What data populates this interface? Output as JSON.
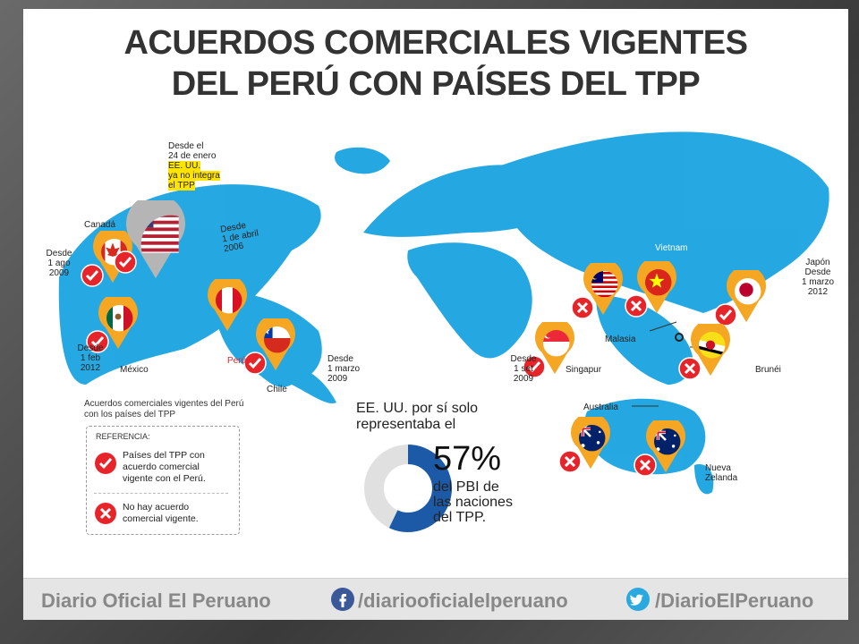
{
  "title_line1": "ACUERDOS COMERCIALES VIGENTES",
  "title_line2": "DEL PERÚ CON PAÍSES DEL TPP",
  "usa_note": {
    "line1": "Desde el",
    "line2": "24 de enero",
    "highlight1": "EE. UU.",
    "highlight2": "ya no integra",
    "highlight3": "el TPP"
  },
  "countries": {
    "canada": {
      "name": "Canadá",
      "since": [
        "Desde",
        "1 ago",
        "2009"
      ],
      "status": "check"
    },
    "usa": {
      "since": [
        "Desde",
        "1 de abril",
        "2006"
      ],
      "status": "check"
    },
    "mexico": {
      "name": "México",
      "since": [
        "Desde",
        "1 feb",
        "2012"
      ],
      "status": "check"
    },
    "peru": {
      "name": "Perú"
    },
    "chile": {
      "name": "Chile",
      "since": [
        "Desde",
        "1 marzo",
        "2009"
      ],
      "status": "check"
    },
    "malasia": {
      "name": "Malasia",
      "status": "cross"
    },
    "vietnam": {
      "name": "Vietnam",
      "status": "cross"
    },
    "japon": {
      "name": "Japón",
      "since": [
        "Desde",
        "1 marzo",
        "2012"
      ],
      "status": "check"
    },
    "singapur": {
      "name": "Singapur",
      "since": [
        "Desde",
        "1 set",
        "2009"
      ],
      "status": "check"
    },
    "brunei": {
      "name": "Brunéi",
      "status": "cross"
    },
    "australia": {
      "name": "Australia",
      "status": "cross"
    },
    "nueva_zelanda": {
      "name_line1": "Nueva",
      "name_line2": "Zelanda",
      "status": "cross"
    }
  },
  "legend": {
    "title": "Acuerdos comerciales vigentes del Perú con los países del TPP",
    "ref": "REFERENCIA:",
    "check_text": [
      "Países del TPP con",
      "acuerdo comercial",
      "vigente con el Perú."
    ],
    "cross_text": [
      "No hay acuerdo",
      "comercial vigente."
    ]
  },
  "stat": {
    "head_line1": "EE. UU. por sí solo",
    "head_line2": "representaba el",
    "value": "57%",
    "text": [
      "del PBI de",
      "las naciones",
      "del TPP."
    ],
    "share": 0.57
  },
  "footer": {
    "brand": "Diario Oficial El Peruano",
    "facebook": "/diariooficialelperuano",
    "twitter": "/DiarioElPeruano"
  },
  "colors": {
    "ocean_land": "#1aa3e0",
    "pin": "#f5a623",
    "check": "#e8242b",
    "donut": "#1c5aa8"
  }
}
